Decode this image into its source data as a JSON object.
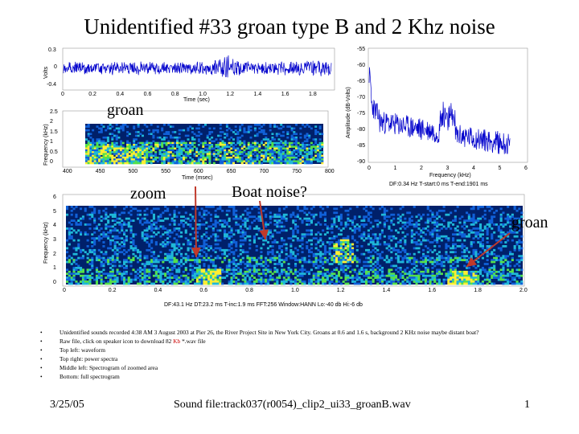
{
  "slide_title": "Unidentified #33 groan type B and 2 Khz noise",
  "waveform": {
    "y_label": "Volts",
    "y_ticks": [
      "0.3",
      "0",
      "-0.4"
    ],
    "x_ticks": [
      "0",
      "0.2",
      "0.4",
      "0.6",
      "0.8",
      "1.0",
      "1.2",
      "1.4",
      "1.6",
      "1.8"
    ],
    "x_label": "Time (sec)"
  },
  "zoom_spectrogram": {
    "y_label": "Frequency (kHz)",
    "y_ticks": [
      "2.5",
      "2",
      "1.5",
      "1",
      "0.5",
      "0"
    ],
    "x_ticks": [
      "400",
      "450",
      "500",
      "550",
      "600",
      "650",
      "700",
      "750",
      "800"
    ],
    "x_label": "Time (msec)"
  },
  "power_spectrum": {
    "y_label": "Amplitude (dB-Volts)",
    "y_ticks": [
      "-55",
      "-60",
      "-65",
      "-70",
      "-75",
      "-80",
      "-85",
      "-90"
    ],
    "x_ticks": [
      "0",
      "1",
      "2",
      "3",
      "4",
      "5",
      "6"
    ],
    "x_label": "Frequency (kHz)",
    "info": "DF:0.34 Hz      T-start:0 ms      T-end:1901 ms"
  },
  "full_spectrogram": {
    "y_label": "Frequency (kHz)",
    "y_ticks": [
      "6",
      "5",
      "4",
      "3",
      "2",
      "1",
      "0"
    ],
    "x_ticks": [
      "0",
      "0.2",
      "0.4",
      "0.6",
      "0.8",
      "1.0",
      "1.2",
      "1.4",
      "1.6",
      "1.8",
      "2.0"
    ],
    "info": "DF:43.1 Hz     DT:23.2 ms     T-inc:1.9 ms     FFT:256     Window:HANN     Lo:-40 db     Hi:-6 db"
  },
  "annotations": {
    "groan_top": "groan",
    "zoom": "zoom",
    "boat_noise": "Boat noise?",
    "groan_right": "groan"
  },
  "bullets": {
    "b1": "Unidentified sounds recorded 4:38 AM 3 August 2003 at Pier 26, the River Project Site in New York City.  Groans at 0.6 and 1.6 s, background 2 KHz noise maybe distant boat?",
    "b2_pre": "Raw file, click on speaker icon to download 82 ",
    "b2_kb": "Kb",
    "b2_post": " *.wav file",
    "b3": "Top left: waveform",
    "b4": "Top right: power spectra",
    "b5": "Middle left: Spectrogram of zoomed area",
    "b6": "Bottom: full spectrogram"
  },
  "footer": {
    "date": "3/25/05",
    "sound_file": "Sound file:track037(r0054)_clip2_ui33_groanB.wav",
    "page": "1"
  },
  "colors": {
    "wave": "#0000cc",
    "arrow": "#c0392b",
    "spec_bg": "#00206a"
  }
}
